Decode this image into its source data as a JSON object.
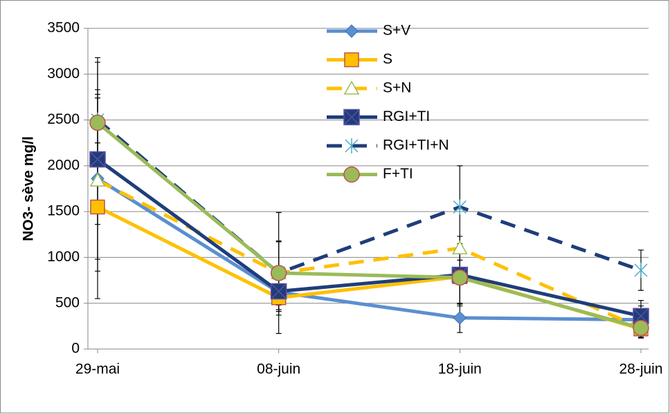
{
  "chart_data": {
    "type": "line",
    "y_label": "NO3- sève mg/l",
    "categories": [
      "29-mai",
      "08-juin",
      "18-juin",
      "28-juin"
    ],
    "ylim": [
      0,
      3500
    ],
    "yticks": [
      0,
      500,
      1000,
      1500,
      2000,
      2500,
      3000,
      3500
    ],
    "grid": true,
    "series": [
      {
        "name": "S+V",
        "color": "#5b8fd0",
        "marker": "diamond",
        "dash": false,
        "values": [
          1860,
          620,
          340,
          320
        ],
        "errors": [
          880,
          250,
          160,
          150
        ]
      },
      {
        "name": "S",
        "color": "#ffc000",
        "marker": "square",
        "dash": false,
        "values": [
          1550,
          560,
          790,
          220
        ],
        "errors": [
          700,
          150,
          300,
          100
        ]
      },
      {
        "name": "S+N",
        "color": "#ffc000",
        "marker": "triangle",
        "dash": true,
        "values": [
          1840,
          830,
          1100,
          230
        ],
        "errors": [
          1290,
          350,
          130,
          100
        ]
      },
      {
        "name": "RGI+TI",
        "color": "#1f3d7a",
        "marker": "xsquare",
        "dash": false,
        "values": [
          2070,
          630,
          810,
          360
        ],
        "errors": [
          710,
          200,
          340,
          170
        ]
      },
      {
        "name": "RGI+TI+N",
        "color": "#1f3d7a",
        "marker": "asterisk",
        "dash": true,
        "values": [
          2500,
          830,
          1550,
          860
        ],
        "errors": [
          680,
          660,
          450,
          220
        ]
      },
      {
        "name": "F+TI",
        "color": "#9bbb59",
        "marker": "circle",
        "dash": false,
        "values": [
          2470,
          830,
          780,
          230
        ],
        "errors": [
          360,
          340,
          290,
          100
        ]
      }
    ]
  }
}
